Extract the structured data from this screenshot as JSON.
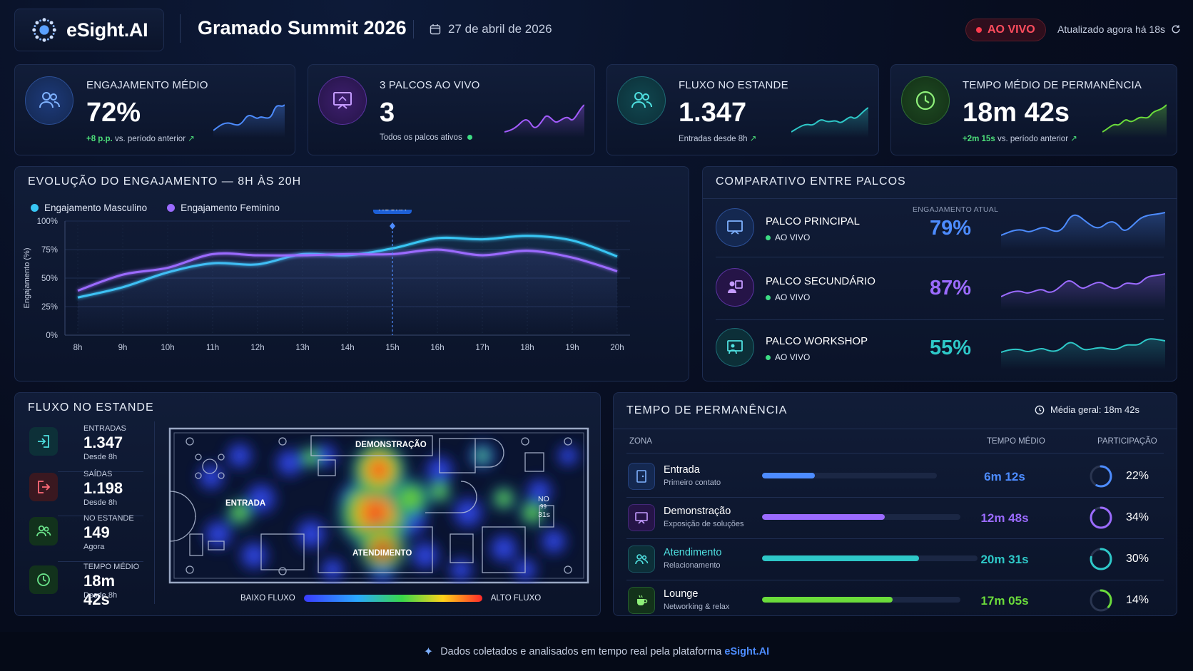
{
  "header": {
    "brand": "eSight.AI",
    "event_title": "Gramado Summit 2026",
    "date": "27 de abril de 2026",
    "live_label": "AO VIVO",
    "updated": "Atualizado agora há 18s"
  },
  "kpis": [
    {
      "title": "ENGAJAMENTO MÉDIO",
      "value": "72%",
      "sub_highlight": "+8 p.p.",
      "sub": "vs. período anterior",
      "accent": "#4d8cff"
    },
    {
      "title": "3 PALCOS AO VIVO",
      "value": "3",
      "sub_highlight": "",
      "sub": "Todos os palcos ativos",
      "accent": "#a35cff"
    },
    {
      "title": "FLUXO NO ESTANDE",
      "value": "1.347",
      "sub_highlight": "",
      "sub": "Entradas desde 8h",
      "accent": "#2ec8c8"
    },
    {
      "title": "TEMPO MÉDIO DE PERMANÊNCIA",
      "value": "18m 42s",
      "sub_highlight": "+2m 15s",
      "sub": "vs. período anterior",
      "accent": "#6bdc3b"
    }
  ],
  "engagement_chart": {
    "title": "EVOLUÇÃO DO ENGAJAMENTO — 8H ÀS 20H",
    "ylabel": "Engajamento (%)",
    "now_label": "AGORA",
    "chart_data": {
      "type": "line",
      "x": [
        "8h",
        "9h",
        "10h",
        "11h",
        "12h",
        "13h",
        "14h",
        "15h",
        "16h",
        "17h",
        "18h",
        "19h",
        "20h"
      ],
      "ylim": [
        0,
        100
      ],
      "yticks": [
        "0%",
        "25%",
        "50%",
        "75%",
        "100%"
      ],
      "grid": true,
      "legend_position": "top-left",
      "now_x": "15h",
      "series": [
        {
          "name": "Engajamento Masculino",
          "color": "#38c6f4",
          "values": [
            33,
            42,
            55,
            63,
            62,
            71,
            70,
            76,
            85,
            84,
            87,
            83,
            69
          ]
        },
        {
          "name": "Engajamento Feminino",
          "color": "#9b6bff",
          "values": [
            39,
            53,
            59,
            71,
            70,
            70,
            71,
            71,
            75,
            70,
            74,
            68,
            56
          ]
        }
      ]
    }
  },
  "stages": {
    "title": "COMPARATIVO ENTRE PALCOS",
    "column_label": "ENGAJAMENTO ATUAL",
    "items": [
      {
        "name": "PALCO PRINCIPAL",
        "status": "AO VIVO",
        "value": "79%",
        "color": "#4d8cff"
      },
      {
        "name": "PALCO SECUNDÁRIO",
        "status": "AO VIVO",
        "value": "87%",
        "color": "#9b6bff"
      },
      {
        "name": "PALCO WORKSHOP",
        "status": "AO VIVO",
        "value": "55%",
        "color": "#2ec8c8"
      }
    ]
  },
  "flow": {
    "title": "FLUXO NO ESTANDE",
    "stats": [
      {
        "label": "ENTRADAS",
        "value": "1.347",
        "sub": "Desde 8h",
        "color": "#2ec8c8"
      },
      {
        "label": "SAÍDAS",
        "value": "1.198",
        "sub": "Desde 8h",
        "color": "#ff5c6a"
      },
      {
        "label": "NO ESTANDE",
        "value": "149",
        "sub": "Agora",
        "color": "#4ddf7a"
      },
      {
        "label": "TEMPO MÉDIO",
        "value": "18m 42s",
        "sub": "Desde 8h",
        "color": "#4ddf7a"
      }
    ],
    "map_labels": {
      "demo": "DEMONSTRAÇÃO",
      "entrada": "ENTRADA",
      "atendimento": "ATENDIMENTO",
      "no": "NO",
      "n99": "99",
      "n31s": "31s"
    },
    "legend_low": "BAIXO FLUXO",
    "legend_high": "ALTO FLUXO"
  },
  "dwell": {
    "title": "TEMPO DE PERMANÊNCIA",
    "average": "Média geral: 18m 42s",
    "col_zone": "ZONA",
    "col_time": "TEMPO MÉDIO",
    "col_share": "PARTICIPAÇÃO",
    "rows": [
      {
        "zone": "Entrada",
        "desc": "Primeiro contato",
        "time": "6m 12s",
        "share": "22%",
        "share_value": 22,
        "bar_fraction": 0.3,
        "color": "#4d8cff"
      },
      {
        "zone": "Demonstração",
        "desc": "Exposição de soluções",
        "time": "12m 48s",
        "share": "34%",
        "share_value": 34,
        "bar_fraction": 0.62,
        "color": "#9b6bff"
      },
      {
        "zone": "Atendimento",
        "desc": "Relacionamento",
        "time": "20m 31s",
        "share": "30%",
        "share_value": 30,
        "bar_fraction": 0.73,
        "color": "#2ec8c8"
      },
      {
        "zone": "Lounge",
        "desc": "Networking & relax",
        "time": "17m 05s",
        "share": "14%",
        "share_value": 14,
        "bar_fraction": 0.66,
        "color": "#6bdc3b"
      }
    ]
  },
  "footer": {
    "text": "Dados coletados e analisados em tempo real pela plataforma",
    "brand": "eSight.AI"
  }
}
